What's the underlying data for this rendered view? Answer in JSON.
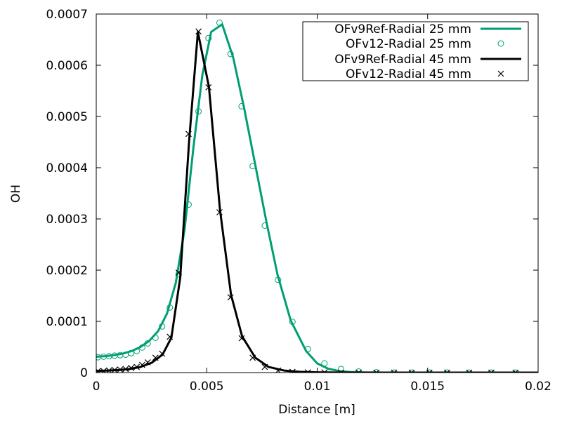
{
  "chart_data": {
    "type": "line",
    "title": "",
    "xlabel": "Distance [m]",
    "ylabel": "OH",
    "xlim": [
      0,
      0.02
    ],
    "ylim": [
      0,
      0.0007
    ],
    "x_ticks": [
      0,
      0.005,
      0.01,
      0.015,
      0.02
    ],
    "x_tick_labels": [
      "0",
      "0.005",
      "0.01",
      "0.015",
      "0.02"
    ],
    "y_ticks": [
      0,
      0.0001,
      0.0002,
      0.0003,
      0.0004,
      0.0005,
      0.0006,
      0.0007
    ],
    "y_tick_labels": [
      "0",
      "0.0001",
      "0.0002",
      "0.0003",
      "0.0004",
      "0.0005",
      "0.0006",
      "0.0007"
    ],
    "grid": false,
    "legend_position": "top-right",
    "series": [
      {
        "name": "OFv9Ref-Radial 25 mm",
        "style": "line",
        "color": "#009e73",
        "x": [
          0,
          0.0004,
          0.0008,
          0.0012,
          0.0016,
          0.002,
          0.0024,
          0.0028,
          0.0032,
          0.0036,
          0.004,
          0.0044,
          0.0048,
          0.0052,
          0.0057,
          0.0062,
          0.0067,
          0.0072,
          0.0077,
          0.0082,
          0.0088,
          0.0095,
          0.01,
          0.0105,
          0.011,
          0.0115,
          0.012,
          0.013,
          0.014,
          0.016,
          0.018,
          0.02
        ],
        "y": [
          3.1e-05,
          3.2e-05,
          3.4e-05,
          3.7e-05,
          4.2e-05,
          5e-05,
          6.2e-05,
          8.1e-05,
          0.000115,
          0.000175,
          0.00028,
          0.00044,
          0.00058,
          0.000665,
          0.00068,
          0.000615,
          0.000515,
          0.000405,
          0.000295,
          0.000192,
          0.000102,
          4.2e-05,
          1.8e-05,
          7.5e-06,
          3e-06,
          1e-06,
          4e-07,
          0,
          0,
          0,
          0,
          0
        ]
      },
      {
        "name": "OFv12-Radial 25 mm",
        "style": "markers",
        "marker": "circle",
        "color": "#009e73",
        "x": [
          8e-05,
          0.00033,
          0.00058,
          0.00083,
          0.00108,
          0.00133,
          0.00158,
          0.00183,
          0.00208,
          0.00233,
          0.00268,
          0.00298,
          0.00333,
          0.00373,
          0.00418,
          0.00463,
          0.00508,
          0.00558,
          0.00608,
          0.00658,
          0.00708,
          0.00763,
          0.00823,
          0.00888,
          0.00958,
          0.01033,
          0.01108,
          0.01188,
          0.01268,
          0.01348,
          0.01428,
          0.01508,
          0.01588,
          0.01688,
          0.01788,
          0.01898
        ],
        "y": [
          3e-05,
          3.1e-05,
          3.2e-05,
          3.3e-05,
          3.4e-05,
          3.5e-05,
          3.8e-05,
          4.2e-05,
          4.9e-05,
          5.7e-05,
          6.8e-05,
          9e-05,
          0.000127,
          0.000192,
          0.000328,
          0.00051,
          0.000653,
          0.000683,
          0.000622,
          0.00052,
          0.000403,
          0.000287,
          0.000181,
          9.9e-05,
          4.6e-05,
          1.8e-05,
          7e-06,
          2e-06,
          5e-07,
          0,
          0,
          0,
          0,
          0,
          0,
          0
        ]
      },
      {
        "name": "OFv9Ref-Radial 45 mm",
        "style": "line",
        "color": "#000000",
        "x": [
          0,
          0.0005,
          0.001,
          0.0015,
          0.002,
          0.0025,
          0.003,
          0.0034,
          0.0038,
          0.0042,
          0.0046,
          0.0051,
          0.0056,
          0.0061,
          0.0066,
          0.0072,
          0.0078,
          0.0085,
          0.0092,
          0.01,
          0.011,
          0.012,
          0.014,
          0.016,
          0.018,
          0.02
        ],
        "y": [
          3e-06,
          4e-06,
          5e-06,
          7e-06,
          1.1e-05,
          1.9e-05,
          3.5e-05,
          6.8e-05,
          0.000185,
          0.00045,
          0.000665,
          0.000558,
          0.000318,
          0.000152,
          7.1e-05,
          2.9e-05,
          1.1e-05,
          4e-06,
          1.5e-06,
          5e-07,
          2e-07,
          0,
          0,
          0,
          0,
          0
        ]
      },
      {
        "name": "OFv12-Radial 45 mm",
        "style": "markers",
        "marker": "x",
        "color": "#000000",
        "x": [
          8e-05,
          0.00033,
          0.00058,
          0.00083,
          0.00108,
          0.00133,
          0.00158,
          0.00183,
          0.00208,
          0.00233,
          0.00268,
          0.00298,
          0.00333,
          0.00373,
          0.00418,
          0.00463,
          0.00508,
          0.00558,
          0.00608,
          0.00658,
          0.00708,
          0.00763,
          0.00823,
          0.00888,
          0.00958,
          0.01033,
          0.01108,
          0.01188,
          0.01268,
          0.01348,
          0.01428,
          0.01508,
          0.01588,
          0.01688,
          0.01788,
          0.01898
        ],
        "y": [
          3e-06,
          3e-06,
          4e-06,
          5e-06,
          6e-06,
          7e-06,
          9e-06,
          1.1e-05,
          1.5e-05,
          2e-05,
          2.9e-05,
          3.7e-05,
          7e-05,
          0.000195,
          0.000466,
          0.000666,
          0.000557,
          0.000313,
          0.000147,
          6.7e-05,
          2.9e-05,
          1.1e-05,
          4e-06,
          1.5e-06,
          5e-07,
          2e-07,
          0,
          0,
          0,
          0,
          0,
          0,
          0,
          0,
          0,
          0
        ]
      }
    ]
  }
}
